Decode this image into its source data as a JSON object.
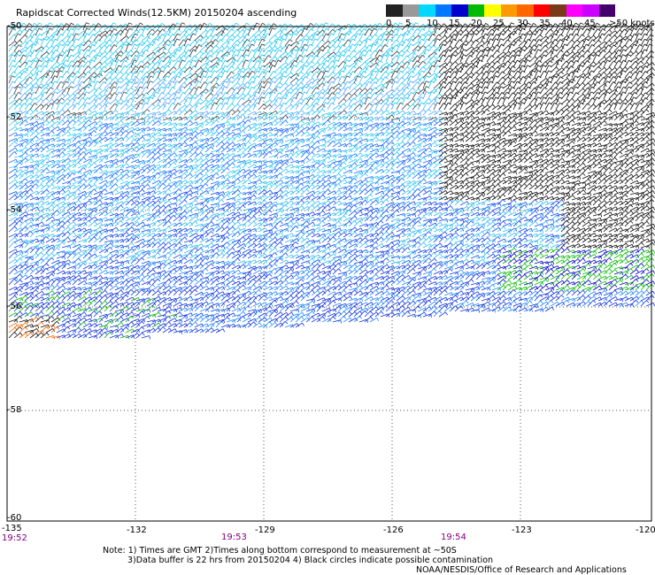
{
  "title": "Rapidscat Corrected Winds(12.5KM) 20150204 ascending",
  "colorbar": {
    "colors": [
      "#222222",
      "#999999",
      "#00d8ff",
      "#0077ff",
      "#0000cc",
      "#00bb00",
      "#ffff00",
      "#ff9900",
      "#ff6600",
      "#ff0000",
      "#7a3a1a",
      "#ff00ff",
      "#cc00ff",
      "#44006a"
    ],
    "labels": [
      "0",
      "5",
      "10",
      "15",
      "20",
      "25",
      "30",
      "35",
      "40",
      "45",
      ">50 knots"
    ]
  },
  "map": {
    "lon_ticks": [
      "-135",
      "-132",
      "-129",
      "-126",
      "-123",
      "-120"
    ],
    "lat_ticks": [
      "-50",
      "-52",
      "-54",
      "-56",
      "-58",
      "-60"
    ],
    "lat_range": [
      -60,
      -50
    ],
    "lon_range": [
      -135,
      -120
    ]
  },
  "times": [
    "19:52",
    "19:53",
    "19:54"
  ],
  "notes": {
    "line1": "Note: 1) Times are GMT 2)Times along bottom correspond to measurement at ~50S",
    "line2": "3)Data buffer is 22 hrs from 20150204 4) Black circles indicate possible contamination",
    "credit": "NOAA/NESDIS/Office of Research and Applications"
  }
}
